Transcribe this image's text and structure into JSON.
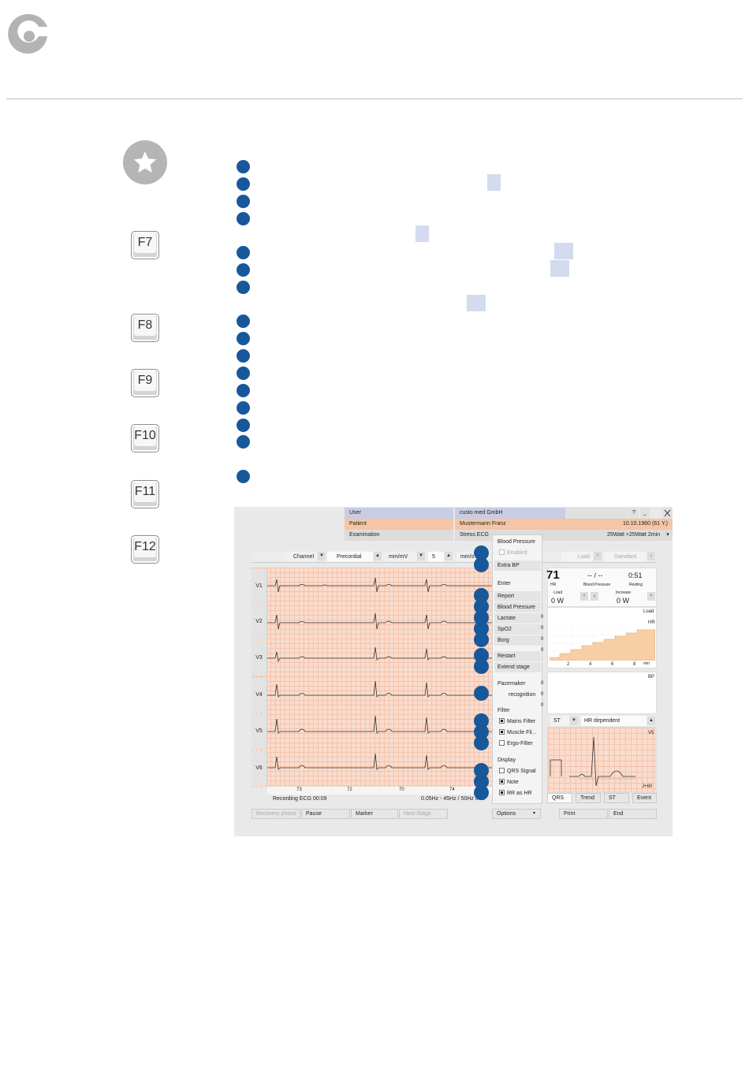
{
  "keys": [
    "F7",
    "F8",
    "F9",
    "F10",
    "F11",
    "F12"
  ],
  "app": {
    "header": {
      "user_label": "User",
      "user_value": "custo med GmbH",
      "patient_label": "Patient",
      "patient_value": "Mustermann Franz",
      "patient_dob": "10.10.1960 (61 Y.)",
      "exam_label": "Examination",
      "exam_value": "Stress ECG",
      "protocol": "25Watt  +25Watt  2min",
      "help": "?",
      "minimize": "_"
    },
    "toolbar": {
      "channel": "Channel",
      "lead_set": "Precordial",
      "amp_unit": "mm/mV",
      "amp_value": "5",
      "speed_unit": "mm/s",
      "load_label": "Load",
      "standard_label": "Standard"
    },
    "channels": [
      "V1",
      "V2",
      "V3",
      "V4",
      "V5",
      "V6"
    ],
    "strip_ticks": [
      "73",
      "72",
      "70",
      "74"
    ],
    "status": {
      "recording": "Recording ECG   00:09",
      "filter": "0.05Hz - 45Hz / 50Hz true"
    },
    "menu": {
      "blood_pressure_header": "Blood Pressure",
      "enabled": "Enabled",
      "extra_bp": "Extra BP",
      "enter_header": "Enter",
      "report": "Report",
      "blood_pressure": "Blood Pressure",
      "lactate": "Lactate",
      "spo2": "SpO2",
      "borg": "Borg",
      "restart": "Restart",
      "extend_stage": "Extend stage",
      "pacemaker_header": "Pacemaker",
      "recognition": "recognition",
      "filter_header": "Filter",
      "mains_filter": "Mains Filter",
      "muscle_filter": "Muscle Fil...",
      "ergo_filter": "Ergo-Filter",
      "display_header": "Display",
      "qrs_signal": "QRS Signal",
      "note": "Note",
      "rr_as_hr": "RR as HR",
      "options": "Options"
    },
    "vitals": {
      "hr": "71",
      "hr_label": "HR",
      "bp": "-- / --",
      "bp_label": "Blood Pressure",
      "time": "0:51",
      "time_label": "Resting",
      "load_label": "Load",
      "load_value": "0 W",
      "increase_label": "Increase",
      "increase_value": "0 W"
    },
    "trend": {
      "load_label": "Load",
      "hr_label": "HR",
      "x_ticks": [
        "2",
        "4",
        "6",
        "8"
      ],
      "x_unit": "min",
      "bp_label": "BP",
      "left_ticks": [
        "0",
        "0",
        "0",
        "0",
        "0",
        "0",
        "0",
        "0"
      ]
    },
    "st": {
      "mode": "ST",
      "mode2": "HR dependent",
      "lead": "V5",
      "jpoint": "J+60"
    },
    "tabs": [
      "QRS",
      "Trend",
      "ST",
      "Event"
    ],
    "bottom_buttons": {
      "recovery": "Recovery phase",
      "pause": "Pause",
      "marker": "Marker",
      "next_stage": "Next Stage",
      "print": "Print",
      "end": "End"
    }
  }
}
